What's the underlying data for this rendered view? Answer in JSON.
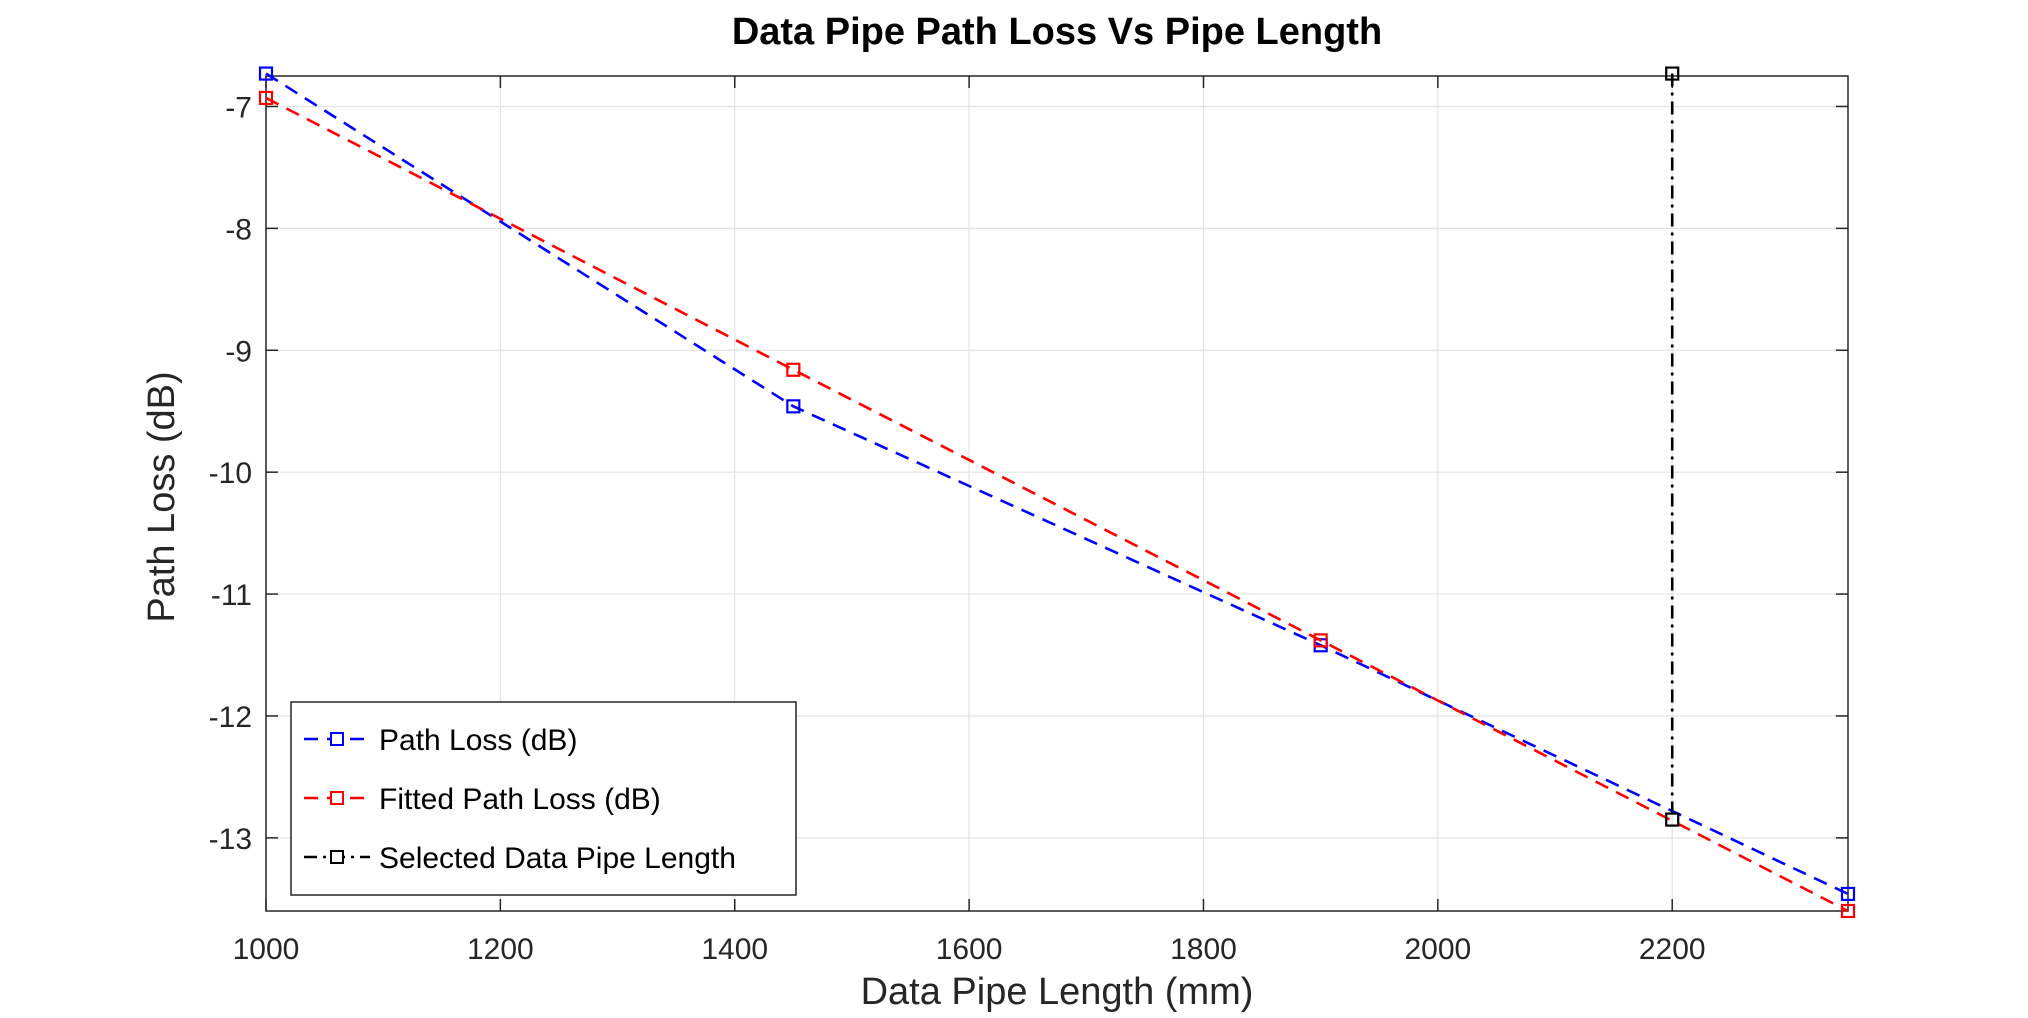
{
  "chart_data": {
    "type": "line",
    "title": "Data Pipe Path Loss Vs Pipe Length",
    "xlabel": "Data Pipe Length (mm)",
    "ylabel": "Path Loss (dB)",
    "xlim": [
      1000,
      2350
    ],
    "ylim": [
      -13.6,
      -6.75
    ],
    "xticks": [
      1000,
      1200,
      1400,
      1600,
      1800,
      2000,
      2200
    ],
    "xtick_labels": [
      "1000",
      "1200",
      "1400",
      "1600",
      "1800",
      "2000",
      "2200"
    ],
    "yticks": [
      -7,
      -8,
      -9,
      -10,
      -11,
      -12,
      -13
    ],
    "ytick_labels": [
      "-7",
      "-8",
      "-9",
      "-10",
      "-11",
      "-12",
      "-13"
    ],
    "grid": true,
    "legend_position": "bottom-left",
    "series": [
      {
        "name": "Path Loss (dB)",
        "color": "#0000ff",
        "line_style": "dashed",
        "marker": "square",
        "x": [
          1000,
          1450,
          1900,
          2350
        ],
        "y": [
          -6.73,
          -9.46,
          -11.42,
          -13.46
        ]
      },
      {
        "name": "Fitted Path Loss (dB)",
        "color": "#ff0000",
        "line_style": "dashed",
        "marker": "square",
        "x": [
          1000,
          1450,
          1900,
          2350
        ],
        "y": [
          -6.93,
          -9.16,
          -11.38,
          -13.6
        ]
      },
      {
        "name": "Selected Data Pipe Length",
        "color": "#000000",
        "line_style": "dash-dot",
        "marker": "square",
        "x": [
          2200,
          2200
        ],
        "y": [
          -6.73,
          -12.85
        ]
      }
    ]
  }
}
